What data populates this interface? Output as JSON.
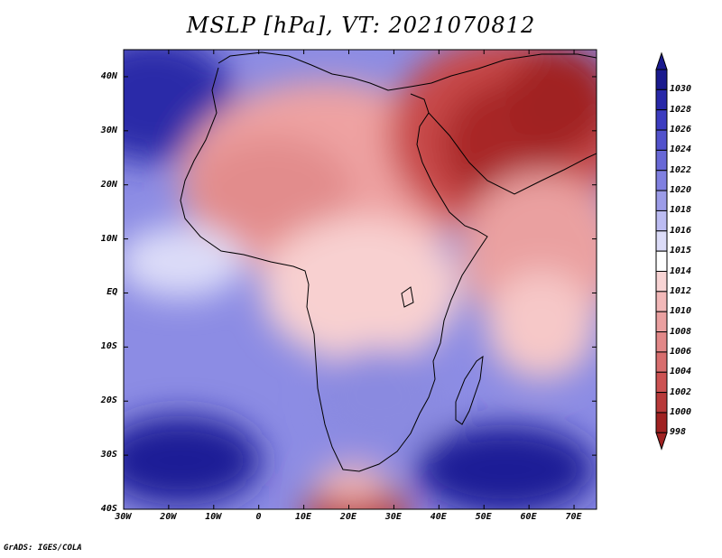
{
  "title": "MSLP [hPa], VT: 2021070812",
  "credit": "GrADS: IGES/COLA",
  "map": {
    "variable": "MSLP",
    "units": "hPa",
    "valid_time": "2021070812",
    "lon_range": [
      -30,
      75
    ],
    "lat_range": [
      -40,
      45
    ],
    "x_ticks": [
      "30W",
      "20W",
      "10W",
      "0",
      "10E",
      "20E",
      "30E",
      "40E",
      "50E",
      "60E",
      "70E"
    ],
    "y_ticks": [
      "40N",
      "30N",
      "20N",
      "10N",
      "EQ",
      "10S",
      "20S",
      "30S",
      "40S"
    ]
  },
  "legend": {
    "levels": [
      "1030",
      "1028",
      "1026",
      "1024",
      "1022",
      "1020",
      "1018",
      "1016",
      "1015",
      "1014",
      "1012",
      "1010",
      "1008",
      "1006",
      "1004",
      "1002",
      "1000",
      "998"
    ],
    "colors": [
      "#1a1a8e",
      "#2828a8",
      "#3c3cc0",
      "#5252cc",
      "#6868d6",
      "#8080e0",
      "#9c9ce8",
      "#bcbcf2",
      "#dcdcf8",
      "#ffffff",
      "#f8d4d4",
      "#f2b8b8",
      "#eaa0a0",
      "#e28888",
      "#d86e6e",
      "#cc5252",
      "#b83a3a",
      "#a02222"
    ]
  }
}
